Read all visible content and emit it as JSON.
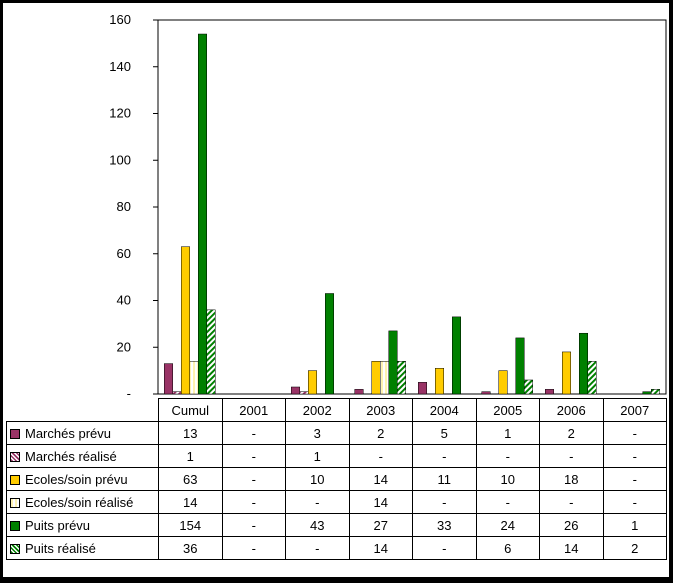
{
  "chart_data": {
    "type": "bar",
    "categories": [
      "Cumul",
      "2001",
      "2002",
      "2003",
      "2004",
      "2005",
      "2006",
      "2007"
    ],
    "ylim": [
      0,
      160
    ],
    "yticks": [
      "-",
      "20",
      "40",
      "60",
      "80",
      "100",
      "120",
      "140",
      "160"
    ],
    "grid": false,
    "legend": "data-table",
    "series": [
      {
        "name": "Marchés prévu",
        "color": "#993366",
        "pattern": "solid",
        "values": [
          13,
          null,
          3,
          2,
          5,
          1,
          2,
          null
        ],
        "cells": [
          "13",
          "-",
          "3",
          "2",
          "5",
          "1",
          "2",
          "-"
        ]
      },
      {
        "name": "Marchés réalisé",
        "color": "#993366",
        "pattern": "hatched",
        "values": [
          1,
          null,
          1,
          null,
          null,
          null,
          null,
          null
        ],
        "cells": [
          "1",
          "-",
          "1",
          "-",
          "-",
          "-",
          "-",
          "-"
        ]
      },
      {
        "name": "Ecoles/soin prévu",
        "color": "#FFCC00",
        "pattern": "solid",
        "values": [
          63,
          null,
          10,
          14,
          11,
          10,
          18,
          null
        ],
        "cells": [
          "63",
          "-",
          "10",
          "14",
          "11",
          "10",
          "18",
          "-"
        ]
      },
      {
        "name": "Ecoles/soin réalisé",
        "color": "#FFCC00",
        "pattern": "light",
        "values": [
          14,
          null,
          null,
          14,
          null,
          null,
          null,
          null
        ],
        "cells": [
          "14",
          "-",
          "-",
          "14",
          "-",
          "-",
          "-",
          "-"
        ]
      },
      {
        "name": "Puits prévu",
        "color": "#008000",
        "pattern": "solid",
        "values": [
          154,
          null,
          43,
          27,
          33,
          24,
          26,
          1
        ],
        "cells": [
          "154",
          "-",
          "43",
          "27",
          "33",
          "24",
          "26",
          "1"
        ]
      },
      {
        "name": "Puits réalisé",
        "color": "#008000",
        "pattern": "hatched",
        "values": [
          36,
          null,
          null,
          14,
          null,
          6,
          14,
          2
        ],
        "cells": [
          "36",
          "-",
          "-",
          "14",
          "-",
          "6",
          "14",
          "2"
        ]
      }
    ]
  }
}
